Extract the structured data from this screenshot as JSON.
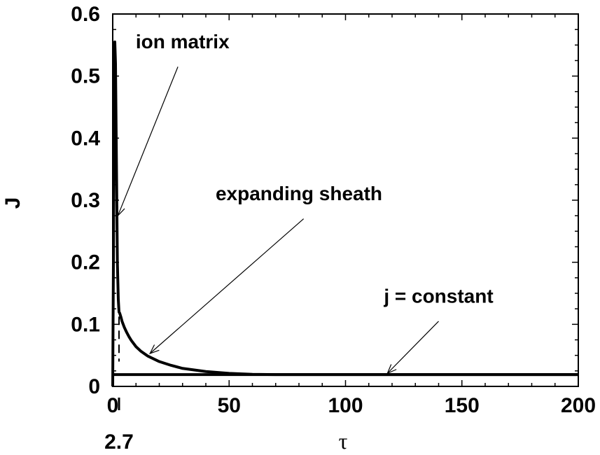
{
  "chart_data": {
    "type": "line",
    "xlabel": "τ",
    "ylabel": "J",
    "xlim": [
      0,
      200
    ],
    "ylim": [
      0,
      0.6
    ],
    "x_ticks": [
      0,
      50,
      100,
      150,
      200
    ],
    "y_ticks": [
      0,
      0.1,
      0.2,
      0.3,
      0.4,
      0.5,
      0.6
    ],
    "x_tick_labels": [
      "0",
      "50",
      "100",
      "150",
      "200"
    ],
    "y_tick_labels": [
      "0",
      "0.1",
      "0.2",
      "0.3",
      "0.4",
      "0.5",
      "0.6"
    ],
    "extra_x_marker": {
      "x": 2.7,
      "label": "2.7"
    },
    "grid": false,
    "series": [
      {
        "style": "solid",
        "x": [
          0,
          0.3,
          0.6,
          0.9,
          1.2,
          1.5,
          2.0,
          2.4,
          2.7,
          3.0,
          3.5,
          4,
          5,
          6,
          7,
          8,
          10,
          12,
          15,
          20,
          25,
          30,
          40,
          50,
          60,
          70,
          80,
          100,
          150,
          200
        ],
        "y": [
          0,
          0.2,
          0.45,
          0.555,
          0.52,
          0.4,
          0.2,
          0.14,
          0.12,
          0.118,
          0.112,
          0.105,
          0.095,
          0.087,
          0.08,
          0.074,
          0.064,
          0.057,
          0.049,
          0.04,
          0.034,
          0.029,
          0.024,
          0.021,
          0.0195,
          0.019,
          0.019,
          0.019,
          0.019,
          0.019
        ]
      },
      {
        "style": "dashed",
        "x": [
          2.7,
          2.7
        ],
        "y": [
          0.135,
          0.04
        ]
      },
      {
        "style": "solid",
        "x": [
          0,
          200
        ],
        "y": [
          0.019,
          0.019
        ]
      }
    ],
    "annotations": [
      {
        "text": "ion matrix",
        "text_x": 30,
        "text_y": 0.545,
        "arrow_from_x": 28,
        "arrow_from_y": 0.515,
        "arrow_to_x": 2.2,
        "arrow_to_y": 0.275
      },
      {
        "text": "expanding sheath",
        "text_x": 80,
        "text_y": 0.3,
        "arrow_from_x": 82,
        "arrow_from_y": 0.27,
        "arrow_to_x": 16,
        "arrow_to_y": 0.053
      },
      {
        "text": "j = constant",
        "text_x": 140,
        "text_y": 0.135,
        "arrow_from_x": 140,
        "arrow_from_y": 0.105,
        "arrow_to_x": 118,
        "arrow_to_y": 0.021
      }
    ]
  }
}
